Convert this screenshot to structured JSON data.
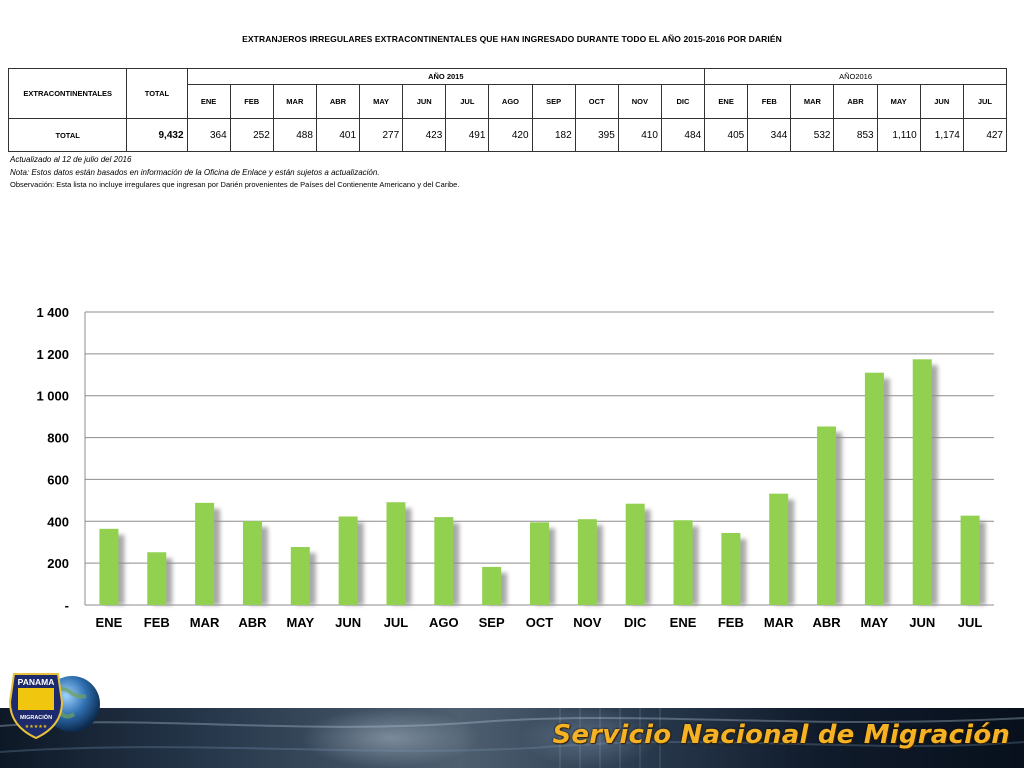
{
  "report_title": "EXTRANJEROS IRREGULARES EXTRACONTINENTALES QUE HAN INGRESADO DURANTE TODO EL AÑO 2015-2016 POR DARIÉN",
  "table": {
    "row_header": "EXTRACONTINENTALES",
    "total_header": "TOTAL",
    "year_2015": "AÑO 2015",
    "year_2016": "AÑO2016",
    "months_2015": [
      "ENE",
      "FEB",
      "MAR",
      "ABR",
      "MAY",
      "JUN",
      "JUL",
      "AGO",
      "SEP",
      "OCT",
      "NOV",
      "DIC"
    ],
    "months_2016": [
      "ENE",
      "FEB",
      "MAR",
      "ABR",
      "MAY",
      "JUN",
      "JUL"
    ],
    "total_row_label": "TOTAL",
    "grand_total": "9,432",
    "values_2015": [
      "364",
      "252",
      "488",
      "401",
      "277",
      "423",
      "491",
      "420",
      "182",
      "395",
      "410",
      "484"
    ],
    "values_2016": [
      "405",
      "344",
      "532",
      "853",
      "1,110",
      "1,174",
      "427"
    ]
  },
  "notes": {
    "updated": "Actualizado al 12 de julio del 2016",
    "note": "Nota: Estos datos están basados en información de la Oficina de Enlace y están sujetos a actualización.",
    "observation": "Observación: Esta lista no incluye irregulares que ingresan por Darién provenientes de Países del Contienente Americano y del Caribe."
  },
  "chart_data": {
    "type": "bar",
    "categories": [
      "ENE",
      "FEB",
      "MAR",
      "ABR",
      "MAY",
      "JUN",
      "JUL",
      "AGO",
      "SEP",
      "OCT",
      "NOV",
      "DIC",
      "ENE",
      "FEB",
      "MAR",
      "ABR",
      "MAY",
      "JUN",
      "JUL"
    ],
    "values": [
      364,
      252,
      488,
      401,
      277,
      423,
      491,
      420,
      182,
      395,
      410,
      484,
      405,
      344,
      532,
      853,
      1110,
      1174,
      427
    ],
    "ylim": [
      0,
      1400
    ],
    "yticks": [
      0,
      200,
      400,
      600,
      800,
      1000,
      1200,
      1400
    ],
    "ytick_labels": [
      "-",
      "200",
      "400",
      "600",
      "800",
      "1 000",
      "1 200",
      "1 400"
    ],
    "grid": true,
    "bar_color": "#92d050",
    "shadow_color": "#8c8c8c"
  },
  "footer": {
    "brand": "Servicio Nacional de Migración",
    "logo_top_text": "PANAMA",
    "logo_bottom_text": "MIGRACIÓN",
    "brand_color": "#f4b224"
  }
}
